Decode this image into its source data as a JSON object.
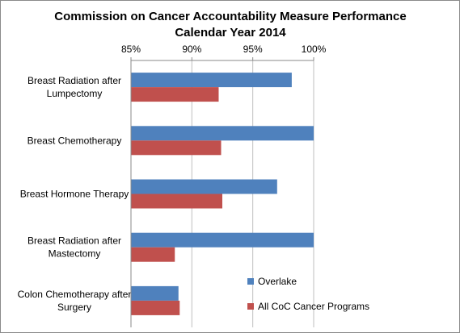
{
  "chart_data": {
    "type": "bar",
    "orientation": "horizontal",
    "title_lines": [
      "Commission on Cancer Accountability Measure Performance",
      "Calendar Year 2014"
    ],
    "xlim": [
      85,
      100
    ],
    "ticks": [
      85,
      90,
      95,
      100
    ],
    "tick_labels": [
      "85%",
      "90%",
      "95%",
      "100%"
    ],
    "grid": true,
    "axis_position": "top",
    "categories": [
      [
        "Breast Radiation after",
        "Lumpectomy"
      ],
      [
        "Breast Chemotherapy"
      ],
      [
        "Breast Hormone Therapy"
      ],
      [
        "Breast Radiation after",
        "Mastectomy"
      ],
      [
        "Colon Chemotherapy after",
        "Surgery"
      ]
    ],
    "series": [
      {
        "name": "Overlake",
        "color": "#4F81BD",
        "values": [
          98.2,
          100,
          97.0,
          100,
          88.9
        ]
      },
      {
        "name": "All CoC Cancer Programs",
        "color": "#C0504D",
        "values": [
          92.2,
          92.4,
          92.5,
          88.6,
          89.0
        ]
      }
    ],
    "legend_position": "bottom-right-inside"
  }
}
